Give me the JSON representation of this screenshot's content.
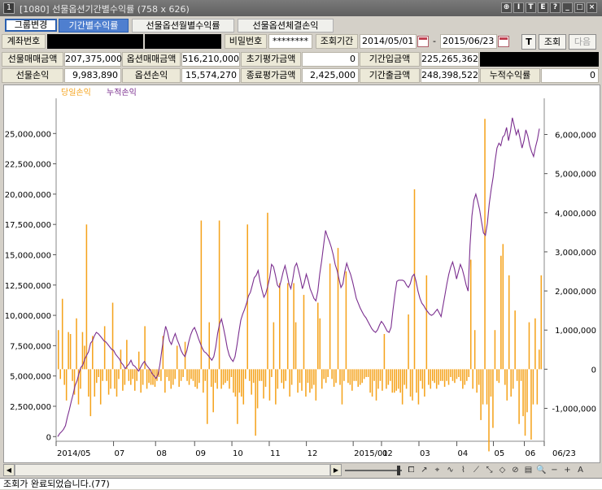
{
  "window": {
    "icon_text": "1",
    "title": "[1080] 선물옵션기간별수익률 (758 x 626)",
    "buttons": [
      "⊕",
      "I",
      "T",
      "E",
      "?",
      "_",
      "□",
      "×"
    ]
  },
  "tabs": {
    "group_button": "그룹변경",
    "items": [
      "기간별수익률",
      "선물옵션월별수익률",
      "선물옵션체결손익"
    ]
  },
  "form": {
    "account_label": "계좌번호",
    "password_label": "비밀번호",
    "password_value": "********",
    "period_label": "조회기간",
    "start_date": "2014/05/01",
    "separator": "-",
    "end_date": "2015/06/23",
    "t_button": "T",
    "search_button": "조회",
    "next_button": "다음"
  },
  "summary": {
    "row1": [
      {
        "label": "선물매매금액",
        "value": "207,375,000"
      },
      {
        "label": "옵션매매금액",
        "value": "516,210,000"
      },
      {
        "label": "초기평가금액",
        "value": "0"
      },
      {
        "label": "기간입금액",
        "value": "225,265,362"
      }
    ],
    "row2": [
      {
        "label": "선물손익",
        "value": "9,983,890"
      },
      {
        "label": "옵션손익",
        "value": "15,574,270"
      },
      {
        "label": "종료평가금액",
        "value": "2,425,000"
      },
      {
        "label": "기간출금액",
        "value": "248,398,522"
      },
      {
        "label": "누적수익률",
        "value": "0"
      }
    ]
  },
  "chart_data": {
    "type": "bar",
    "colors": {
      "daily": "#f5a31c",
      "cumulative": "#7b2f8f"
    },
    "series": [
      {
        "name": "당일손익",
        "axis": "right",
        "kind": "bar",
        "values": [
          1000000,
          -250000,
          1800000,
          -400000,
          -800000,
          950000,
          900000,
          -300000,
          -650000,
          1300000,
          -900000,
          -500000,
          950000,
          600000,
          3700000,
          -700000,
          -1200000,
          850000,
          -700000,
          -350000,
          -200000,
          -900000,
          -300000,
          1100000,
          -300000,
          -650000,
          -500000,
          1700000,
          -500000,
          -700000,
          -250000,
          500000,
          -550000,
          -400000,
          750000,
          -300000,
          -400000,
          -250000,
          -550000,
          -300000,
          450000,
          -600000,
          -400000,
          1100000,
          -500000,
          -350000,
          -400000,
          -400000,
          -450000,
          -300000,
          -200000,
          -300000,
          850000,
          -600000,
          -200000,
          -300000,
          -500000,
          -400000,
          -250000,
          600000,
          -450000,
          -300000,
          -200000,
          700000,
          -300000,
          -400000,
          -250000,
          -300000,
          -450000,
          -500000,
          -350000,
          3800000,
          -600000,
          -300000,
          -1400000,
          1200000,
          -450000,
          -1100000,
          -350000,
          -500000,
          3800000,
          -500000,
          -400000,
          -350000,
          -300000,
          -500000,
          -200000,
          -600000,
          -700000,
          -1400000,
          -600000,
          -700000,
          -900000,
          -250000,
          3700000,
          -300000,
          -650000,
          -350000,
          -1700000,
          -1000000,
          -300000,
          -300000,
          -750000,
          -450000,
          4000000,
          -800000,
          -200000,
          1200000,
          -900000,
          -500000,
          2200000,
          -350000,
          -500000,
          -300000,
          2200000,
          -700000,
          -400000,
          2200000,
          1200000,
          -600000,
          -350000,
          -550000,
          1900000,
          -700000,
          -350000,
          -600000,
          -500000,
          -400000,
          -800000,
          1700000,
          1300000,
          -500000,
          -250000,
          -350000,
          -200000,
          2700000,
          -250000,
          -450000,
          -350000,
          3100000,
          -400000,
          -900000,
          -300000,
          2500000,
          -350000,
          -400000,
          -550000,
          -300000,
          -300000,
          -450000,
          -400000,
          -350000,
          -250000,
          -200000,
          -200000,
          -600000,
          -700000,
          -300000,
          -800000,
          -500000,
          -300000,
          -550000,
          900000,
          -500000,
          -400000,
          -300000,
          -600000,
          -600000,
          -550000,
          -500000,
          -600000,
          -900000,
          -400000,
          -500000,
          1400000,
          -700000,
          -800000,
          4600000,
          -600000,
          -900000,
          -300000,
          -500000,
          -700000,
          2400000,
          -400000,
          -500000,
          -300000,
          -350000,
          -500000,
          -400000,
          -300000,
          -300000,
          -450000,
          -300000,
          -400000,
          -200000,
          -300000,
          -350000,
          -250000,
          -200000,
          -300000,
          -500000,
          -400000,
          -300000,
          -200000,
          2800000,
          -500000,
          1000000,
          -600000,
          -400000,
          -1300000,
          -900000,
          6400000,
          -900000,
          -2100000,
          -700000,
          -1500000,
          1000000,
          -300000,
          -350000,
          2900000,
          3200000,
          -400000,
          -800000,
          2400000,
          -700000,
          -500000,
          1500000,
          -300000,
          -1400000,
          -300000,
          -1200000,
          -1700000,
          -1100000,
          1200000,
          -1800000,
          -900000,
          1300000,
          -900000,
          500000,
          2400000
        ]
      },
      {
        "name": "누적손익",
        "axis": "left",
        "kind": "line",
        "values": [
          0,
          250000,
          400000,
          600000,
          900000,
          1600000,
          2200000,
          2900000,
          3500000,
          4200000,
          4600000,
          5200000,
          5700000,
          5900000,
          6400000,
          6700000,
          7000000,
          7700000,
          7900000,
          8300000,
          8600000,
          8500000,
          8300000,
          8100000,
          7900000,
          7800000,
          7600000,
          7400000,
          7200000,
          7100000,
          6800000,
          6600000,
          6400000,
          6100000,
          5900000,
          5600000,
          5800000,
          6000000,
          6300000,
          5900000,
          5800000,
          5600000,
          5400000,
          5700000,
          6000000,
          6200000,
          5900000,
          5700000,
          5500000,
          5200000,
          5000000,
          4800000,
          5100000,
          5900000,
          7100000,
          8200000,
          9100000,
          8600000,
          7900000,
          7600000,
          8100000,
          8500000,
          8000000,
          7600000,
          7100000,
          6800000,
          6600000,
          7100000,
          7800000,
          8400000,
          8800000,
          9000000,
          8600000,
          8100000,
          7700000,
          7300000,
          7000000,
          6900000,
          6700000,
          6500000,
          6300000,
          6600000,
          7400000,
          8500000,
          9300000,
          9700000,
          9000000,
          8200000,
          7300000,
          6700000,
          6400000,
          6200000,
          6600000,
          7500000,
          8600000,
          9600000,
          10100000,
          10500000,
          11000000,
          11600000,
          11900000,
          12500000,
          13100000,
          13300000,
          13700000,
          12800000,
          12100000,
          11500000,
          11800000,
          12400000,
          13100000,
          14200000,
          14000000,
          13300000,
          12500000,
          12300000,
          12900000,
          13600000,
          14100000,
          13400000,
          12600000,
          12200000,
          13000000,
          14000000,
          14300000,
          13700000,
          13000000,
          12200000,
          12700000,
          13400000,
          12900000,
          12200000,
          11800000,
          11400000,
          11200000,
          12000000,
          13400000,
          14500000,
          15800000,
          17000000,
          16500000,
          16100000,
          15600000,
          15000000,
          14200000,
          13700000,
          13000000,
          12300000,
          12600000,
          13600000,
          14300000,
          13800000,
          13400000,
          12800000,
          12100000,
          11400000,
          11000000,
          10600000,
          10300000,
          10000000,
          9800000,
          9500000,
          9200000,
          8900000,
          8700000,
          8600000,
          8800000,
          9200000,
          9500000,
          9300000,
          9000000,
          8700000,
          8600000,
          9000000,
          10400000,
          11700000,
          12800000,
          12900000,
          12900000,
          12900000,
          12800000,
          12500000,
          12300000,
          12600000,
          13200000,
          13400000,
          12800000,
          12000000,
          11400000,
          11000000,
          10800000,
          10500000,
          10300000,
          10100000,
          10000000,
          10100000,
          10300000,
          10500000,
          10200000,
          9900000,
          10800000,
          11700000,
          12600000,
          13400000,
          14000000,
          14400000,
          13800000,
          13000000,
          13600000,
          14200000,
          13800000,
          13200000,
          12500000,
          12000000,
          15800000,
          18200000,
          19500000,
          20000000,
          19400000,
          18700000,
          17700000,
          16800000,
          16600000,
          17600000,
          19200000,
          20400000,
          21400000,
          22700000,
          23800000,
          24200000,
          24000000,
          24700000,
          24900000,
          25500000,
          24400000,
          25200000,
          26300000,
          25600000,
          24900000,
          25300000,
          24600000,
          23800000,
          24400000,
          25300000,
          24800000,
          24000000,
          23500000,
          23100000,
          23900000,
          24500000,
          25400000
        ]
      }
    ],
    "x_tick_labels": [
      "2014/05",
      "07",
      "08",
      "09",
      "10",
      "11",
      "12",
      "2015/01",
      "02",
      "03",
      "04",
      "05",
      "06",
      "06/23"
    ],
    "x_tick_fractions": [
      0,
      0.1176,
      0.2037,
      0.2837,
      0.3601,
      0.4366,
      0.5127,
      0.6086,
      0.6666,
      0.7433,
      0.8209,
      0.8958,
      0.9592,
      1.0
    ],
    "left_axis": {
      "ticks": [
        0,
        2500000,
        5000000,
        7500000,
        10000000,
        12500000,
        15000000,
        17500000,
        20000000,
        22500000,
        25000000
      ],
      "tick_labels": [
        "0",
        "2,500,000",
        "5,000,000",
        "7,500,000",
        "10,000,000",
        "12,500,000",
        "15,000,000",
        "17,500,000",
        "20,000,000",
        "22,500,000",
        "25,000,000"
      ],
      "min": -250000,
      "max": 27500000
    },
    "right_axis": {
      "ticks": [
        -1000000,
        0,
        1000000,
        2000000,
        3000000,
        4000000,
        5000000,
        6000000
      ],
      "tick_labels": [
        "-1,000,000",
        "0",
        "1,000,000",
        "2,000,000",
        "3,000,000",
        "4,000,000",
        "5,000,000",
        "6,000,000"
      ],
      "min": -1800000,
      "max": 6800000
    },
    "grid": false,
    "legend": "top-left"
  },
  "toolbar": {
    "scroll_left": "◀",
    "scroll_right": "▶",
    "tools": [
      "⧠",
      "↗",
      "⌖",
      "∿",
      "⌇",
      "⟋",
      "⤡",
      "◇",
      "⊘",
      "▤",
      "🔍",
      "−",
      "+",
      "A"
    ]
  },
  "status": {
    "message": "조회가 완료되었습니다.(77)"
  }
}
